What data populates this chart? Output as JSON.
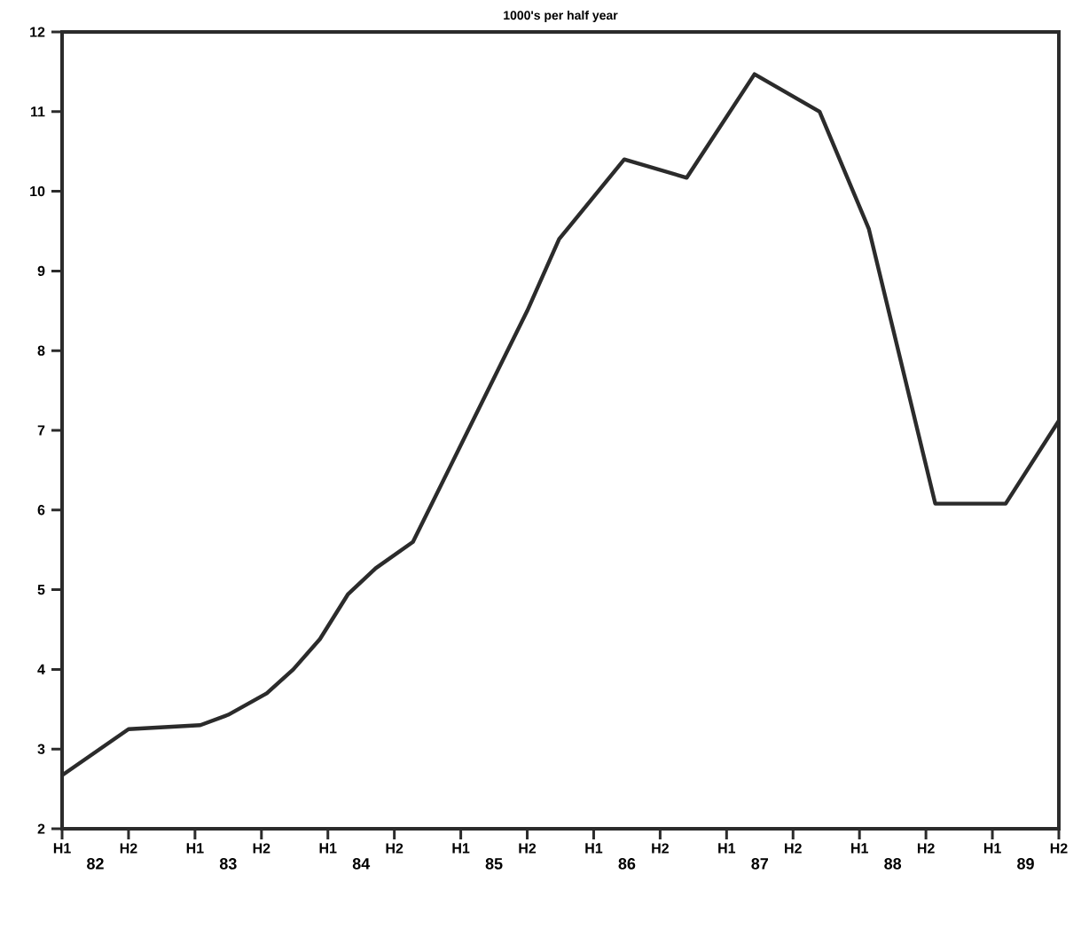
{
  "chart_data": {
    "type": "line",
    "title": "1000's per half year",
    "x": [
      81.75,
      82.25,
      82.79,
      83.0,
      83.29,
      83.49,
      83.69,
      83.9,
      84.11,
      84.39,
      85.25,
      85.49,
      85.98,
      86.45,
      86.96,
      87.45,
      87.82,
      88.32,
      88.85,
      89.25
    ],
    "values": [
      2.67,
      3.25,
      3.3,
      3.43,
      3.7,
      4.0,
      4.38,
      4.94,
      5.27,
      5.6,
      8.5,
      9.4,
      10.4,
      10.17,
      11.47,
      11.0,
      9.53,
      6.08,
      6.08,
      7.12
    ],
    "color": "#2b2b2b",
    "xlim": [
      81.75,
      89.25
    ],
    "xticks": [
      {
        "value": 81.75,
        "label": null
      },
      {
        "value": 82.25,
        "label": null
      },
      {
        "value": 82.75,
        "label": null
      },
      {
        "value": 83.25,
        "label": null
      },
      {
        "value": 83.75,
        "label": null
      },
      {
        "value": 84.25,
        "label": null
      },
      {
        "value": 84.75,
        "label": null
      },
      {
        "value": 85.25,
        "label": null
      },
      {
        "value": 85.75,
        "label": null
      },
      {
        "value": 86.25,
        "label": null
      },
      {
        "value": 86.75,
        "label": null
      },
      {
        "value": 87.25,
        "label": null
      },
      {
        "value": 87.75,
        "label": null
      },
      {
        "value": 88.25,
        "label": null
      },
      {
        "value": 88.75,
        "label": null
      },
      {
        "value": 89.25,
        "label": null
      },
      82,
      83,
      84,
      85,
      86,
      87,
      88,
      89
    ],
    "annotations": [
      "H1",
      "H2",
      "H1",
      "H2",
      "H1",
      "H2",
      "H1",
      "H2",
      "H1",
      "H2",
      "H1",
      "H2",
      "H1",
      "H2",
      "H1",
      "H2"
    ],
    "ylim": [
      2,
      12
    ],
    "yticks": [
      2,
      3,
      4,
      5,
      6,
      7,
      8,
      9,
      10,
      11,
      12
    ]
  }
}
